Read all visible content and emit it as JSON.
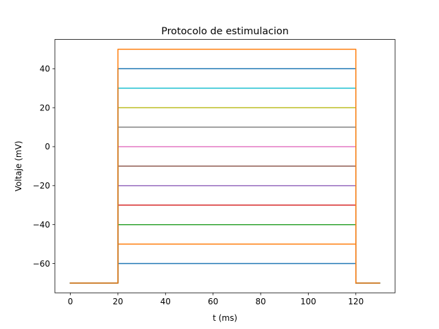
{
  "chart_data": {
    "type": "line",
    "title": "Protocolo de estimulacion",
    "xlabel": "t (ms)",
    "ylabel": "Voltaje (mV)",
    "xlim": [
      -6.5,
      136.5
    ],
    "ylim": [
      -75,
      55
    ],
    "xticks": [
      0,
      20,
      40,
      60,
      80,
      100,
      120
    ],
    "yticks": [
      -60,
      -40,
      -20,
      0,
      20,
      40
    ],
    "ytick_labels": [
      "−60",
      "−40",
      "−20",
      "0",
      "20",
      "40"
    ],
    "grid": false,
    "holding_potential": -70,
    "time_points": [
      0,
      20,
      20,
      120,
      120,
      130
    ],
    "series": [
      {
        "step_level": -60,
        "color": "#1f77b4"
      },
      {
        "step_level": -50,
        "color": "#ff7f0e"
      },
      {
        "step_level": -40,
        "color": "#2ca02c"
      },
      {
        "step_level": -30,
        "color": "#d62728"
      },
      {
        "step_level": -20,
        "color": "#9467bd"
      },
      {
        "step_level": -10,
        "color": "#8c564b"
      },
      {
        "step_level": 0,
        "color": "#e377c2"
      },
      {
        "step_level": 10,
        "color": "#7f7f7f"
      },
      {
        "step_level": 20,
        "color": "#bcbd22"
      },
      {
        "step_level": 30,
        "color": "#17becf"
      },
      {
        "step_level": 40,
        "color": "#1f77b4"
      },
      {
        "step_level": 50,
        "color": "#ff7f0e"
      }
    ]
  }
}
